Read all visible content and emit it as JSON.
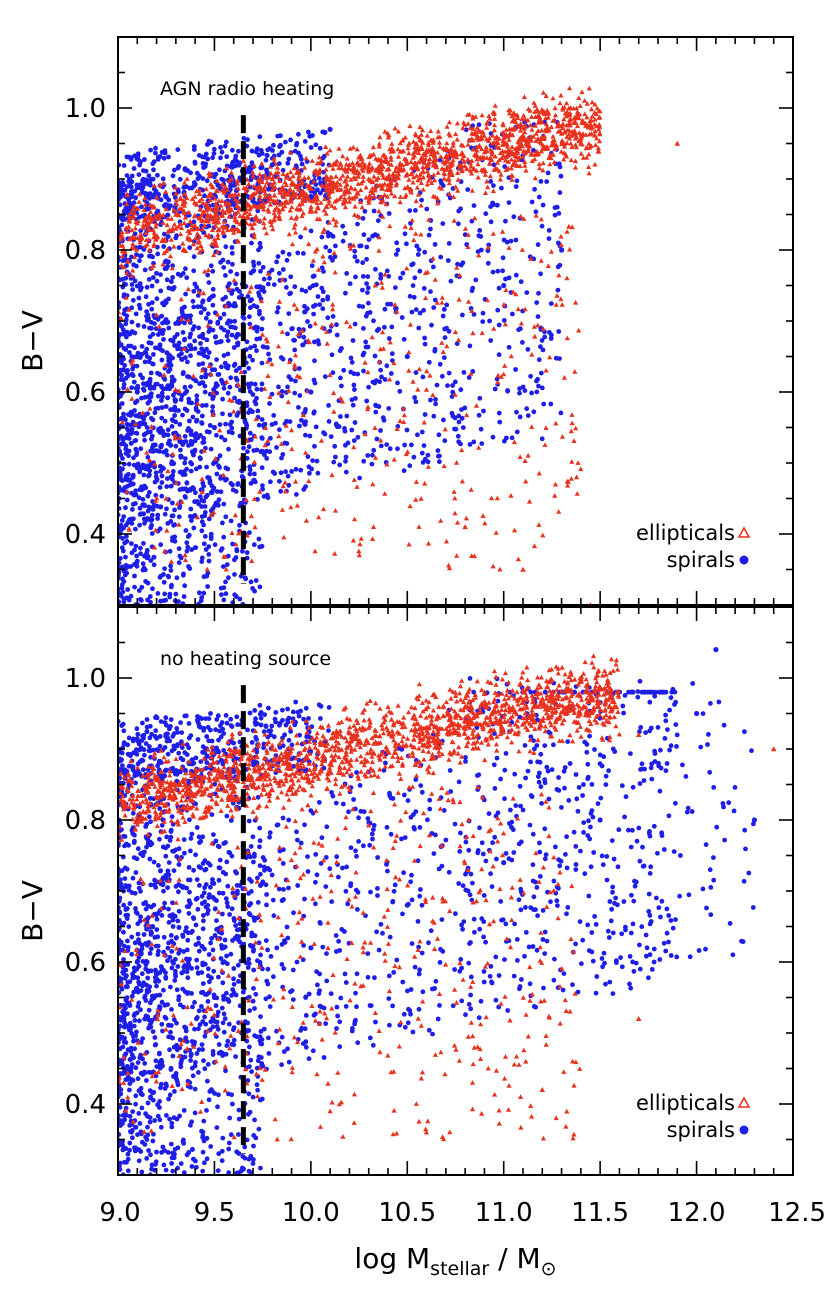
{
  "chart_data": [
    {
      "type": "scatter",
      "panel": "top",
      "annotation": "AGN radio heating",
      "xlabel": {
        "main": "log M",
        "subscript": "stellar",
        "sep": " / M",
        "subscript2": "⊙"
      },
      "ylabel": "B−V",
      "xlim": [
        9.0,
        12.5
      ],
      "ylim": [
        0.3,
        1.1
      ],
      "x_ticks": [
        9.0,
        9.5,
        10.0,
        10.5,
        11.0,
        11.5,
        12.0,
        12.5
      ],
      "x_tick_labels": [
        "9.0",
        "9.5",
        "10.0",
        "10.5",
        "11.0",
        "11.5",
        "12.0",
        "12.5"
      ],
      "y_ticks": [
        0.4,
        0.6,
        0.8,
        1.0
      ],
      "y_tick_labels": [
        "0.4",
        "0.6",
        "0.8",
        "1.0"
      ],
      "reference_line": {
        "x": 9.65,
        "style": "dashed",
        "color": "#000000",
        "y_range": [
          0.33,
          0.99
        ]
      },
      "series": [
        {
          "name": "ellipticals",
          "marker": "triangle",
          "color": "#e8321e",
          "sample_points": [
            [
              9.3,
              0.85
            ],
            [
              9.8,
              0.9
            ],
            [
              10.2,
              0.92
            ],
            [
              10.6,
              0.94
            ],
            [
              11.0,
              0.95
            ],
            [
              11.4,
              0.95
            ],
            [
              11.9,
              0.95
            ],
            [
              10.8,
              0.41
            ],
            [
              11.1,
              0.35
            ],
            [
              11.45,
              0.3
            ]
          ]
        },
        {
          "name": "spirals",
          "marker": "circle",
          "color": "#1e1ee6",
          "sample_points": [
            [
              9.1,
              0.6
            ],
            [
              9.5,
              0.55
            ],
            [
              10.0,
              0.6
            ],
            [
              10.5,
              0.65
            ],
            [
              11.0,
              0.75
            ],
            [
              11.3,
              0.8
            ],
            [
              9.8,
              0.92
            ],
            [
              10.1,
              0.97
            ]
          ]
        }
      ],
      "legend": {
        "position": "bottom-right",
        "entries": [
          "ellipticals",
          "spirals"
        ]
      }
    },
    {
      "type": "scatter",
      "panel": "bottom",
      "annotation": "no heating source",
      "xlabel": {
        "main": "log M",
        "subscript": "stellar",
        "sep": " / M",
        "subscript2": "⊙"
      },
      "ylabel": "B−V",
      "xlim": [
        9.0,
        12.5
      ],
      "ylim": [
        0.3,
        1.1
      ],
      "x_ticks": [
        9.0,
        9.5,
        10.0,
        10.5,
        11.0,
        11.5,
        12.0,
        12.5
      ],
      "x_tick_labels": [
        "9.0",
        "9.5",
        "10.0",
        "10.5",
        "11.0",
        "11.5",
        "12.0",
        "12.5"
      ],
      "y_ticks": [
        0.4,
        0.6,
        0.8,
        1.0
      ],
      "y_tick_labels": [
        "0.4",
        "0.6",
        "0.8",
        "1.0"
      ],
      "reference_line": {
        "x": 9.65,
        "style": "dashed",
        "color": "#000000",
        "y_range": [
          0.33,
          0.99
        ]
      },
      "series": [
        {
          "name": "ellipticals",
          "marker": "triangle",
          "color": "#e8321e",
          "sample_points": [
            [
              9.3,
              0.85
            ],
            [
              9.8,
              0.9
            ],
            [
              10.3,
              0.93
            ],
            [
              10.8,
              0.96
            ],
            [
              11.2,
              0.96
            ],
            [
              11.7,
              0.92
            ],
            [
              12.4,
              0.9
            ],
            [
              11.7,
              0.52
            ],
            [
              11.2,
              0.42
            ]
          ]
        },
        {
          "name": "spirals",
          "marker": "circle",
          "color": "#1e1ee6",
          "sample_points": [
            [
              9.1,
              0.6
            ],
            [
              9.5,
              0.55
            ],
            [
              10.0,
              0.62
            ],
            [
              10.5,
              0.68
            ],
            [
              11.0,
              0.74
            ],
            [
              11.5,
              0.8
            ],
            [
              12.0,
              0.95
            ],
            [
              12.3,
              0.8
            ],
            [
              12.1,
              1.04
            ]
          ]
        }
      ],
      "legend": {
        "position": "bottom-right",
        "entries": [
          "ellipticals",
          "spirals"
        ]
      }
    }
  ]
}
